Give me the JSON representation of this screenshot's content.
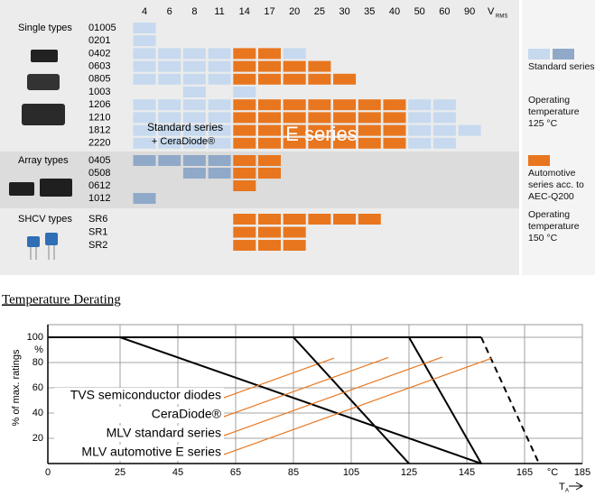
{
  "selection_table": {
    "columns": [
      4,
      6,
      8,
      11,
      14,
      17,
      20,
      25,
      30,
      35,
      40,
      50,
      60,
      90
    ],
    "unit": "V",
    "unit_sub": "RMS",
    "groups": [
      {
        "label": "Single types",
        "rows": [
          {
            "label": "01005",
            "cells": [
              "#c6d9ef",
              null,
              null,
              null,
              null,
              null,
              null,
              null,
              null,
              null,
              null,
              null,
              null,
              null
            ]
          },
          {
            "label": "0201",
            "cells": [
              "#c6d9ef",
              null,
              null,
              null,
              null,
              null,
              null,
              null,
              null,
              null,
              null,
              null,
              null,
              null
            ]
          },
          {
            "label": "0402",
            "cells": [
              "#c6d9ef",
              "#c6d9ef",
              "#c6d9ef",
              "#c6d9ef",
              "#e8761e",
              "#e8761e",
              "#c6d9ef",
              null,
              null,
              null,
              null,
              null,
              null,
              null
            ]
          },
          {
            "label": "0603",
            "cells": [
              "#c6d9ef",
              "#c6d9ef",
              "#c6d9ef",
              "#c6d9ef",
              "#e8761e",
              "#e8761e",
              "#e8761e",
              "#e8761e",
              null,
              null,
              null,
              null,
              null,
              null
            ]
          },
          {
            "label": "0805",
            "cells": [
              "#c6d9ef",
              "#c6d9ef",
              "#c6d9ef",
              "#c6d9ef",
              "#e8761e",
              "#e8761e",
              "#e8761e",
              "#e8761e",
              "#e8761e",
              null,
              null,
              null,
              null,
              null
            ]
          },
          {
            "label": "1003",
            "cells": [
              null,
              null,
              "#c6d9ef",
              null,
              "#c6d9ef",
              null,
              null,
              null,
              null,
              null,
              null,
              null,
              null,
              null
            ]
          },
          {
            "label": "1206",
            "cells": [
              "#c6d9ef",
              "#c6d9ef",
              "#c6d9ef",
              "#c6d9ef",
              "#e8761e",
              "#e8761e",
              "#e8761e",
              "#e8761e",
              "#e8761e",
              "#e8761e",
              "#e8761e",
              "#c6d9ef",
              "#c6d9ef",
              null
            ]
          },
          {
            "label": "1210",
            "cells": [
              "#c6d9ef",
              "#c6d9ef",
              "#c6d9ef",
              "#c6d9ef",
              "#e8761e",
              "#e8761e",
              "#e8761e",
              "#e8761e",
              "#e8761e",
              "#e8761e",
              "#e8761e",
              "#c6d9ef",
              "#c6d9ef",
              null
            ]
          },
          {
            "label": "1812",
            "cells": [
              "#c6d9ef",
              "#c6d9ef",
              "#c6d9ef",
              "#c6d9ef",
              "#e8761e",
              "#e8761e",
              "#e8761e",
              "#e8761e",
              "#e8761e",
              "#e8761e",
              "#e8761e",
              "#c6d9ef",
              "#c6d9ef",
              "#c6d9ef"
            ]
          },
          {
            "label": "2220",
            "cells": [
              "#c6d9ef",
              "#c6d9ef",
              "#c6d9ef",
              "#c6d9ef",
              "#e8761e",
              "#e8761e",
              "#e8761e",
              "#e8761e",
              "#e8761e",
              "#e8761e",
              "#e8761e",
              "#c6d9ef",
              "#c6d9ef",
              null
            ]
          }
        ]
      },
      {
        "label": "Array types",
        "rows": [
          {
            "label": "0405",
            "cells": [
              "#90a9c9",
              "#90a9c9",
              "#90a9c9",
              "#90a9c9",
              "#e8761e",
              "#e8761e",
              null,
              null,
              null,
              null,
              null,
              null,
              null,
              null
            ]
          },
          {
            "label": "0508",
            "cells": [
              null,
              null,
              "#90a9c9",
              "#90a9c9",
              "#e8761e",
              "#e8761e",
              null,
              null,
              null,
              null,
              null,
              null,
              null,
              null
            ]
          },
          {
            "label": "0612",
            "cells": [
              null,
              null,
              null,
              null,
              "#e8761e",
              null,
              null,
              null,
              null,
              null,
              null,
              null,
              null,
              null
            ]
          },
          {
            "label": "1012",
            "cells": [
              "#90a9c9",
              null,
              null,
              null,
              null,
              null,
              null,
              null,
              null,
              null,
              null,
              null,
              null,
              null
            ]
          }
        ]
      },
      {
        "label": "SHCV types",
        "rows": [
          {
            "label": "SR6",
            "cells": [
              null,
              null,
              null,
              null,
              "#e8761e",
              "#e8761e",
              "#e8761e",
              "#e8761e",
              "#e8761e",
              "#e8761e",
              null,
              null,
              null,
              null
            ]
          },
          {
            "label": "SR1",
            "cells": [
              null,
              null,
              null,
              null,
              "#e8761e",
              "#e8761e",
              "#e8761e",
              null,
              null,
              null,
              null,
              null,
              null,
              null
            ]
          },
          {
            "label": "SR2",
            "cells": [
              null,
              null,
              null,
              null,
              "#e8761e",
              "#e8761e",
              "#e8761e",
              null,
              null,
              null,
              null,
              null,
              null,
              null
            ]
          }
        ]
      }
    ],
    "overlay_texts": [
      "Standard series",
      "+ CeraDiode®",
      "E series"
    ],
    "legend": [
      {
        "colors": [
          "#c6d9ef",
          "#90a9c9"
        ],
        "text": "Standard series"
      },
      {
        "text": "Operating temperature 125 °C"
      },
      {
        "colors": [
          "#e8761e"
        ],
        "text": "Automotive series acc. to AEC-Q200"
      },
      {
        "text": "Operating temperature 150 °C"
      }
    ]
  },
  "chart_data": {
    "type": "line",
    "title": "Temperature Derating",
    "ylabel": "% of max. ratings",
    "yunit": "%",
    "xunit": "°C",
    "xlabel": "T",
    "xlabel_sub": "A",
    "xlim": [
      0,
      185
    ],
    "ylim": [
      0,
      110
    ],
    "xticks": [
      0,
      25,
      45,
      65,
      85,
      105,
      125,
      145,
      165,
      185
    ],
    "yticks": [
      20,
      40,
      60,
      80,
      100
    ],
    "grid": true,
    "annotation_color": "#e8761e",
    "series": [
      {
        "name": "TVS semiconductor diodes",
        "color": "#000000",
        "x": [
          0,
          25,
          150
        ],
        "values": [
          100,
          100,
          0
        ]
      },
      {
        "name": "CeraDiode®",
        "color": "#000000",
        "x": [
          0,
          85,
          125
        ],
        "values": [
          100,
          100,
          0
        ]
      },
      {
        "name": "MLV standard series",
        "color": "#000000",
        "x": [
          0,
          125,
          150
        ],
        "values": [
          100,
          100,
          0
        ]
      },
      {
        "name": "MLV automotive E series",
        "color": "#000000",
        "x": [
          0,
          150,
          170
        ],
        "values": [
          100,
          100,
          0
        ],
        "dashed": true
      }
    ]
  }
}
